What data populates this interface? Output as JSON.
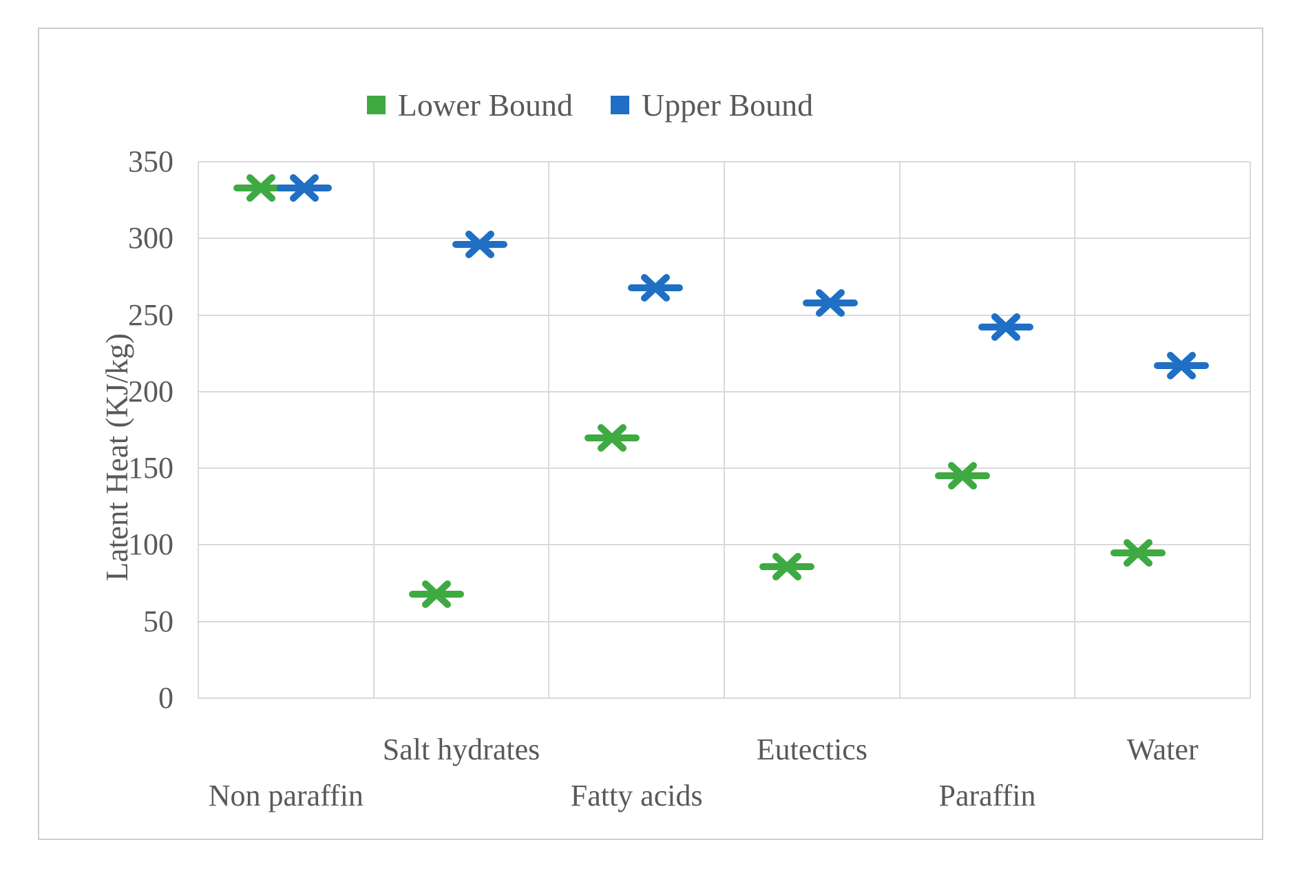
{
  "chart_data": {
    "type": "scatter",
    "title": "",
    "ylabel": "Latent Heat (KJ/kg)",
    "xlabel": "",
    "categories": [
      "Non paraffin",
      "Salt hydrates",
      "Fatty acids",
      "Eutectics",
      "Paraffin",
      "Water"
    ],
    "series": [
      {
        "name": "Lower Bound",
        "color": "#3FA942",
        "marker": "asterisk-x",
        "values": [
          333,
          68,
          170,
          86,
          145,
          95
        ]
      },
      {
        "name": "Upper Bound",
        "color": "#1F6FC5",
        "marker": "asterisk-x",
        "values": [
          333,
          296,
          268,
          258,
          242,
          217
        ]
      }
    ],
    "ylim": [
      0,
      350
    ],
    "ytick_step": 50,
    "yticks": [
      0,
      50,
      100,
      150,
      200,
      250,
      300,
      350
    ],
    "grid": true,
    "legend_position": "top-center",
    "category_labels_staggered": true
  },
  "style": {
    "text_color": "#595959",
    "grid_color": "#d9d9d9",
    "frame_border_color": "#cccccc",
    "background_color": "#ffffff"
  }
}
